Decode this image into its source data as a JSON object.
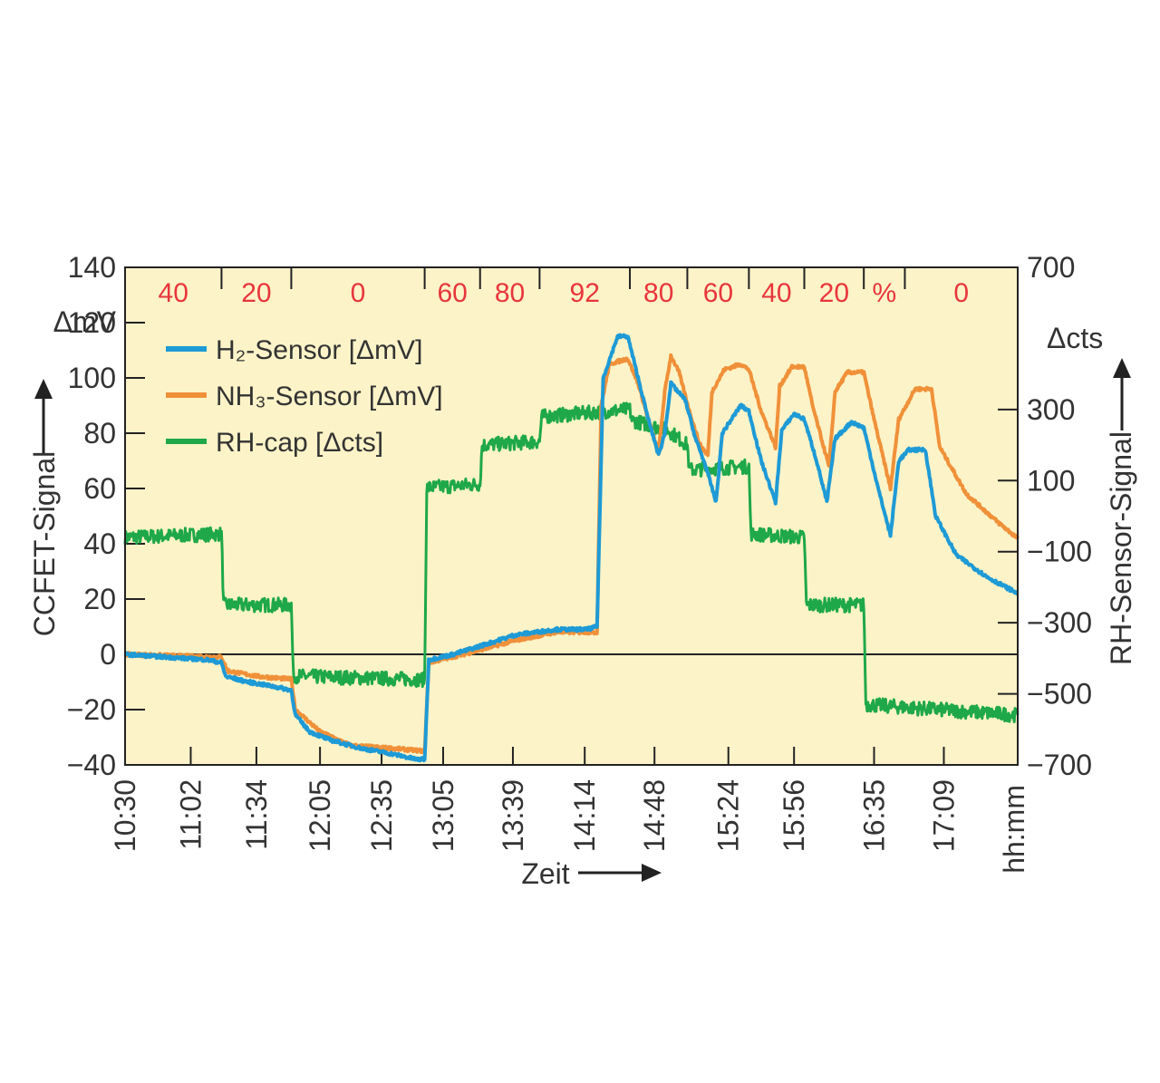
{
  "chart_data": {
    "type": "line",
    "x_axis": {
      "label": "Zeit",
      "unit_label": "hh:mm",
      "ticks": [
        "10:30",
        "11:02",
        "11:34",
        "12:05",
        "12:35",
        "13:05",
        "13:39",
        "14:14",
        "14:48",
        "15:24",
        "15:56",
        "16:35",
        "17:09"
      ],
      "range": [
        "10:30",
        "17:45"
      ]
    },
    "y_axis_left": {
      "label": "CCFET-Signal",
      "unit": "ΔmV",
      "range": [
        -40,
        140
      ],
      "ticks": [
        "140",
        "120",
        "100",
        "80",
        "60",
        "40",
        "20",
        "0",
        "−20",
        "−40"
      ]
    },
    "y_axis_right": {
      "label": "RH-Sensor-Signal",
      "unit": "Δcts",
      "range": [
        -700,
        700
      ],
      "ticks": [
        "700",
        "300",
        "100",
        "−100",
        "−300",
        "−500",
        "−700"
      ]
    },
    "rh_steps": [
      {
        "label": "40",
        "start": "10:30",
        "end": "11:17"
      },
      {
        "label": "20",
        "start": "11:17",
        "end": "11:51"
      },
      {
        "label": "0",
        "start": "11:51",
        "end": "12:56"
      },
      {
        "label": "60",
        "start": "12:56",
        "end": "13:23"
      },
      {
        "label": "80",
        "start": "13:23",
        "end": "13:52"
      },
      {
        "label": "92",
        "start": "13:52",
        "end": "14:36"
      },
      {
        "label": "80",
        "start": "14:36",
        "end": "15:04"
      },
      {
        "label": "60",
        "start": "15:04",
        "end": "15:34"
      },
      {
        "label": "40",
        "start": "15:34",
        "end": "16:01"
      },
      {
        "label": "20",
        "start": "16:01",
        "end": "16:30"
      },
      {
        "label": "%",
        "start": "16:30",
        "end": "16:50"
      },
      {
        "label": "0",
        "start": "16:50",
        "end": "17:45"
      }
    ],
    "series": [
      {
        "name": "H₂-Sensor [ΔmV]",
        "color": "#1e9ad6",
        "axis": "left",
        "points": [
          [
            "10:30",
            0
          ],
          [
            "10:50",
            -1
          ],
          [
            "11:10",
            -2
          ],
          [
            "11:17",
            -3
          ],
          [
            "11:19",
            -8
          ],
          [
            "11:30",
            -10
          ],
          [
            "11:45",
            -12
          ],
          [
            "11:51",
            -13
          ],
          [
            "11:53",
            -22
          ],
          [
            "12:00",
            -28
          ],
          [
            "12:10",
            -31
          ],
          [
            "12:25",
            -34
          ],
          [
            "12:40",
            -36
          ],
          [
            "12:52",
            -38
          ],
          [
            "12:56",
            -38
          ],
          [
            "12:58",
            -2
          ],
          [
            "13:10",
            0
          ],
          [
            "13:23",
            3
          ],
          [
            "13:40",
            7
          ],
          [
            "14:00",
            9
          ],
          [
            "14:15",
            9
          ],
          [
            "14:20",
            10
          ],
          [
            "14:23",
            100
          ],
          [
            "14:30",
            115
          ],
          [
            "14:35",
            115
          ],
          [
            "14:45",
            85
          ],
          [
            "14:50",
            72
          ],
          [
            "14:53",
            80
          ],
          [
            "14:56",
            98
          ],
          [
            "15:03",
            92
          ],
          [
            "15:08",
            78
          ],
          [
            "15:13",
            68
          ],
          [
            "15:18",
            55
          ],
          [
            "15:21",
            80
          ],
          [
            "15:30",
            90
          ],
          [
            "15:34",
            88
          ],
          [
            "15:40",
            70
          ],
          [
            "15:47",
            55
          ],
          [
            "15:50",
            81
          ],
          [
            "15:56",
            87
          ],
          [
            "16:01",
            85
          ],
          [
            "16:07",
            70
          ],
          [
            "16:12",
            55
          ],
          [
            "16:16",
            78
          ],
          [
            "16:24",
            84
          ],
          [
            "16:30",
            82
          ],
          [
            "16:37",
            60
          ],
          [
            "16:43",
            43
          ],
          [
            "16:47",
            70
          ],
          [
            "16:52",
            74
          ],
          [
            "17:00",
            74
          ],
          [
            "17:05",
            50
          ],
          [
            "17:15",
            36
          ],
          [
            "17:30",
            28
          ],
          [
            "17:45",
            22
          ]
        ]
      },
      {
        "name": "NH₃-Sensor [ΔmV]",
        "color": "#f0913a",
        "axis": "left",
        "points": [
          [
            "10:30",
            0
          ],
          [
            "11:17",
            -1
          ],
          [
            "11:20",
            -6
          ],
          [
            "11:35",
            -8
          ],
          [
            "11:51",
            -9
          ],
          [
            "11:53",
            -20
          ],
          [
            "12:05",
            -28
          ],
          [
            "12:20",
            -33
          ],
          [
            "12:40",
            -34
          ],
          [
            "12:56",
            -35
          ],
          [
            "12:58",
            -3
          ],
          [
            "13:15",
            0
          ],
          [
            "13:40",
            5
          ],
          [
            "14:00",
            8
          ],
          [
            "14:20",
            8
          ],
          [
            "14:22",
            90
          ],
          [
            "14:26",
            105
          ],
          [
            "14:35",
            107
          ],
          [
            "14:40",
            98
          ],
          [
            "14:45",
            85
          ],
          [
            "14:50",
            73
          ],
          [
            "14:53",
            95
          ],
          [
            "14:56",
            108
          ],
          [
            "15:00",
            102
          ],
          [
            "15:05",
            88
          ],
          [
            "15:10",
            76
          ],
          [
            "15:14",
            72
          ],
          [
            "15:16",
            95
          ],
          [
            "15:22",
            103
          ],
          [
            "15:30",
            105
          ],
          [
            "15:34",
            103
          ],
          [
            "15:40",
            88
          ],
          [
            "15:47",
            75
          ],
          [
            "15:49",
            97
          ],
          [
            "15:55",
            104
          ],
          [
            "16:01",
            104
          ],
          [
            "16:05",
            90
          ],
          [
            "16:13",
            68
          ],
          [
            "16:16",
            95
          ],
          [
            "16:22",
            102
          ],
          [
            "16:30",
            102
          ],
          [
            "16:35",
            85
          ],
          [
            "16:43",
            60
          ],
          [
            "16:47",
            85
          ],
          [
            "16:55",
            96
          ],
          [
            "17:03",
            96
          ],
          [
            "17:07",
            75
          ],
          [
            "17:20",
            58
          ],
          [
            "17:35",
            48
          ],
          [
            "17:45",
            42
          ]
        ]
      },
      {
        "name": "RH-cap [Δcts]",
        "color": "#1ea84a",
        "axis": "right",
        "points": [
          [
            "10:30",
            -60
          ],
          [
            "11:17",
            -50
          ],
          [
            "11:18",
            -250
          ],
          [
            "11:51",
            -250
          ],
          [
            "11:52",
            -450
          ],
          [
            "12:56",
            -460
          ],
          [
            "12:57",
            80
          ],
          [
            "13:23",
            90
          ],
          [
            "13:24",
            200
          ],
          [
            "13:52",
            210
          ],
          [
            "13:53",
            280
          ],
          [
            "14:36",
            300
          ],
          [
            "14:37",
            270
          ],
          [
            "14:55",
            240
          ],
          [
            "15:04",
            200
          ],
          [
            "15:05",
            130
          ],
          [
            "15:34",
            140
          ],
          [
            "15:35",
            -50
          ],
          [
            "16:01",
            -60
          ],
          [
            "16:02",
            -250
          ],
          [
            "16:30",
            -250
          ],
          [
            "16:31",
            -530
          ],
          [
            "17:45",
            -560
          ]
        ]
      }
    ],
    "baseline": 0
  }
}
